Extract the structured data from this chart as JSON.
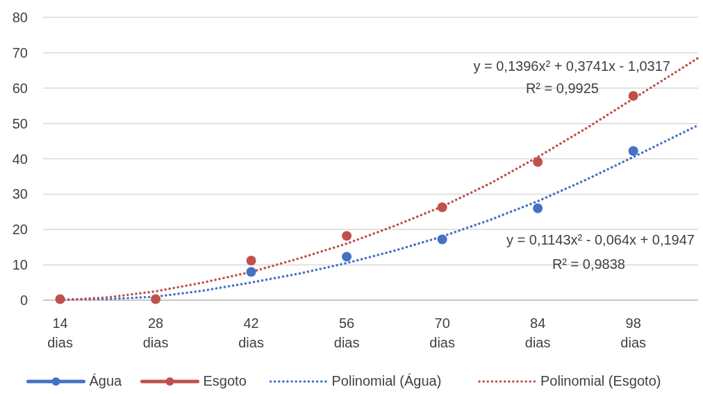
{
  "chart_data": {
    "type": "scatter",
    "xlim": [
      11.5,
      107.5
    ],
    "xticks": [
      {
        "value": 14,
        "label": "14 dias"
      },
      {
        "value": 28,
        "label": "28 dias"
      },
      {
        "value": 42,
        "label": "42 dias"
      },
      {
        "value": 56,
        "label": "56 dias"
      },
      {
        "value": 70,
        "label": "70 dias"
      },
      {
        "value": 84,
        "label": "84 dias"
      },
      {
        "value": 98,
        "label": "98 dias"
      }
    ],
    "ylim": [
      0,
      80
    ],
    "yticks": [
      0,
      10,
      20,
      30,
      40,
      50,
      60,
      70,
      80
    ],
    "grid": "y",
    "legend": "bottom",
    "series": [
      {
        "name": "Água",
        "marker": "circle",
        "color": "#4472c4",
        "x": [
          42,
          56,
          70,
          84,
          98
        ],
        "values": [
          8,
          12.3,
          17.2,
          26,
          42.2
        ]
      },
      {
        "name": "Esgoto",
        "marker": "circle",
        "color": "#c0504d",
        "x": [
          14,
          28,
          42,
          56,
          70,
          84,
          98
        ],
        "values": [
          0.3,
          0.3,
          11.2,
          18.2,
          26.3,
          39.1,
          57.8
        ]
      },
      {
        "name": "Polinomial (Água)",
        "type": "line",
        "line_style": "dotted",
        "marker": "none",
        "color": "#4472c4",
        "x": [
          14,
          21,
          28,
          35,
          42,
          49,
          56,
          63,
          70,
          77,
          84,
          91,
          98,
          107.5
        ],
        "values": [
          0.2,
          0.3,
          1,
          2.7,
          5,
          7.5,
          10.5,
          14,
          18,
          22.7,
          28,
          34,
          40.5,
          49.5
        ]
      },
      {
        "name": "Polinomial (Esgoto)",
        "type": "line",
        "line_style": "dotted",
        "marker": "none",
        "color": "#c0504d",
        "x": [
          14,
          21,
          28,
          35,
          42,
          49,
          56,
          63,
          70,
          77,
          84,
          91,
          98,
          107.5
        ],
        "values": [
          0,
          0.8,
          2.5,
          5,
          8,
          11.8,
          16,
          21,
          26.5,
          33,
          40.5,
          48.5,
          57,
          68.5
        ]
      }
    ],
    "annotations": [
      "y = 0,1396x² + 0,3741x - 1,0317",
      "R² = 0,9925",
      "y = 0,1143x² - 0,064x + 0,1947",
      "R² = 0,9838"
    ]
  }
}
